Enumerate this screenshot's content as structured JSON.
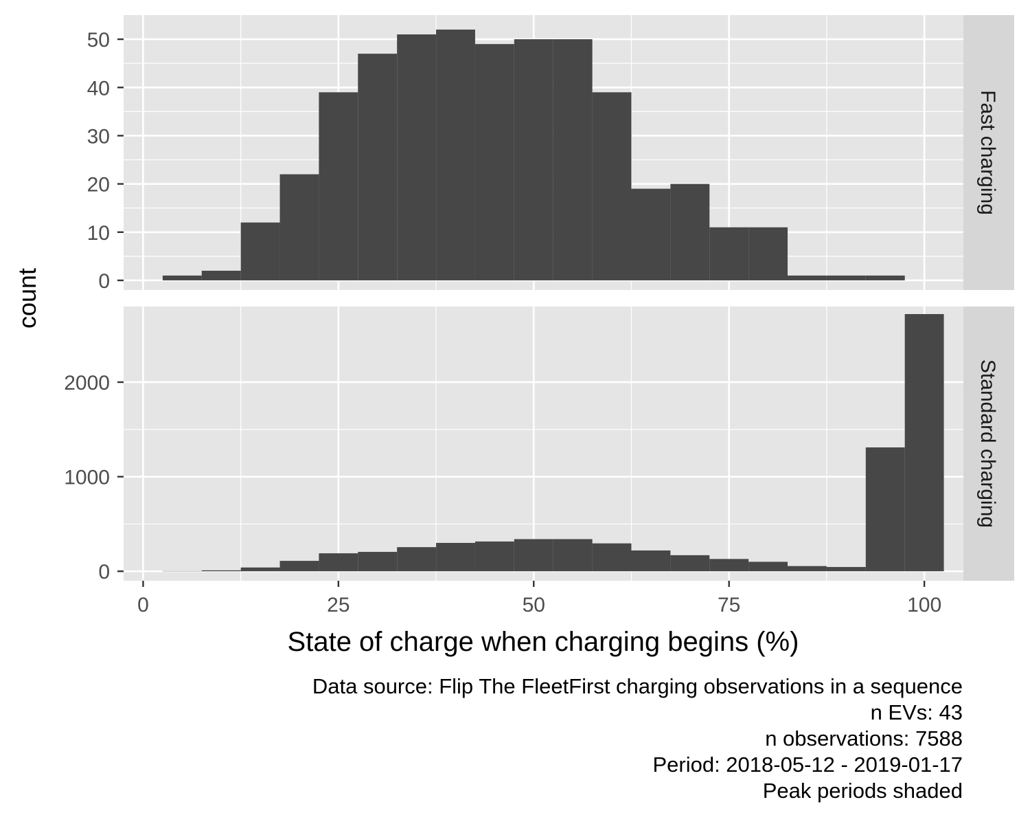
{
  "chart_data": {
    "type": "bar",
    "xlabel": "State of charge when charging begins (%)",
    "ylabel": "count",
    "x_ticks": [
      0,
      25,
      50,
      75,
      100
    ],
    "xlim": [
      -2.5,
      105
    ],
    "bin_width": 5,
    "grid": true,
    "panels": [
      {
        "strip": "Fast charging",
        "ylim": [
          -2,
          55
        ],
        "y_ticks": [
          0,
          10,
          20,
          30,
          40,
          50
        ],
        "x": [
          5,
          10,
          15,
          20,
          25,
          30,
          35,
          40,
          45,
          50,
          55,
          60,
          65,
          70,
          75,
          80,
          85,
          90,
          95
        ],
        "values": [
          1,
          2,
          12,
          22,
          39,
          47,
          51,
          52,
          49,
          50,
          50,
          39,
          19,
          20,
          11,
          11,
          1,
          1,
          1
        ]
      },
      {
        "strip": "Standard charging",
        "ylim": [
          -100,
          2800
        ],
        "y_ticks": [
          0,
          1000,
          2000
        ],
        "x": [
          5,
          10,
          15,
          20,
          25,
          30,
          35,
          40,
          45,
          50,
          55,
          60,
          65,
          70,
          75,
          80,
          85,
          90,
          95,
          100
        ],
        "values": [
          3,
          10,
          40,
          110,
          190,
          205,
          255,
          300,
          315,
          340,
          340,
          295,
          220,
          170,
          130,
          100,
          55,
          45,
          1310,
          2720
        ]
      }
    ]
  },
  "caption": {
    "lines": [
      "Data source: Flip The FleetFirst charging observations in a sequence",
      "n EVs: 43",
      "n observations: 7588",
      "Period: 2018-05-12 - 2019-01-17",
      "Peak periods shaded"
    ]
  },
  "colors": {
    "panel_bg": "#e5e5e5",
    "strip_bg": "#d6d6d6",
    "bar_fill": "#474747",
    "grid": "#ffffff",
    "tick_text": "#4d4d4d"
  }
}
